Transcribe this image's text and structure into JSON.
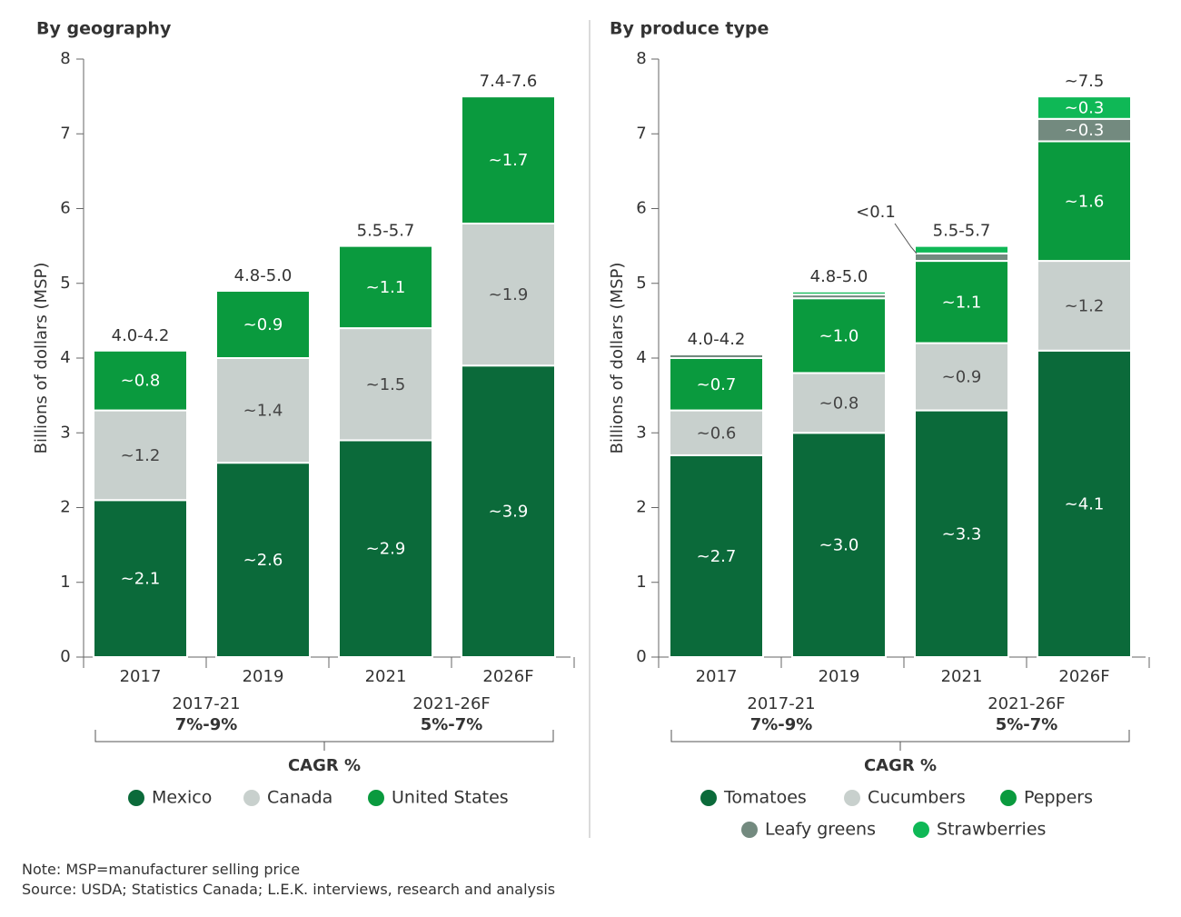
{
  "colors": {
    "dark_green": "#0b6a3a",
    "light_gray": "#c8d0cd",
    "mid_green": "#0a9a3e",
    "slate": "#738a7f",
    "bright_green": "#0fb856",
    "axis": "#666666",
    "divider": "#cfcfcf"
  },
  "footer": {
    "note": "Note: MSP=manufacturer selling price",
    "source": "Source: USDA; Statistics Canada; L.E.K. interviews, research and analysis"
  },
  "chart_data": [
    {
      "type": "bar",
      "stacked": true,
      "title": "By geography",
      "ylabel": "Billions of dollars (MSP)",
      "ylim": [
        0,
        8
      ],
      "yticks": [
        0,
        1,
        2,
        3,
        4,
        5,
        6,
        7,
        8
      ],
      "categories": [
        "2017",
        "2019",
        "2021",
        "2026F"
      ],
      "totals": [
        "4.0-4.2",
        "4.8-5.0",
        "5.5-5.7",
        "7.4-7.6"
      ],
      "series": [
        {
          "name": "Mexico",
          "color": "#0b6a3a",
          "values": [
            2.1,
            2.6,
            2.9,
            3.9
          ],
          "labels": [
            "~2.1",
            "~2.6",
            "~2.9",
            "~3.9"
          ]
        },
        {
          "name": "Canada",
          "color": "#c8d0cd",
          "values": [
            1.2,
            1.4,
            1.5,
            1.9
          ],
          "labels": [
            "~1.2",
            "~1.4",
            "~1.5",
            "~1.9"
          ]
        },
        {
          "name": "United States",
          "color": "#0a9a3e",
          "values": [
            0.8,
            0.9,
            1.1,
            1.7
          ],
          "labels": [
            "~0.8",
            "~0.9",
            "~1.1",
            "~1.7"
          ]
        }
      ],
      "cagr": {
        "title": "CAGR %",
        "periods": [
          {
            "period": "2017-21",
            "value": "7%-9%"
          },
          {
            "period": "2021-26F",
            "value": "5%-7%"
          }
        ]
      }
    },
    {
      "type": "bar",
      "stacked": true,
      "title": "By produce type",
      "ylabel": "Billions of dollars (MSP)",
      "ylim": [
        0,
        8
      ],
      "yticks": [
        0,
        1,
        2,
        3,
        4,
        5,
        6,
        7,
        8
      ],
      "categories": [
        "2017",
        "2019",
        "2021",
        "2026F"
      ],
      "totals": [
        "4.0-4.2",
        "4.8-5.0",
        "5.5-5.7",
        "~7.5"
      ],
      "series": [
        {
          "name": "Tomatoes",
          "color": "#0b6a3a",
          "values": [
            2.7,
            3.0,
            3.3,
            4.1
          ],
          "labels": [
            "~2.7",
            "~3.0",
            "~3.3",
            "~4.1"
          ]
        },
        {
          "name": "Cucumbers",
          "color": "#c8d0cd",
          "values": [
            0.6,
            0.8,
            0.9,
            1.2
          ],
          "labels": [
            "~0.6",
            "~0.8",
            "~0.9",
            "~1.2"
          ]
        },
        {
          "name": "Peppers",
          "color": "#0a9a3e",
          "values": [
            0.7,
            1.0,
            1.1,
            1.6
          ],
          "labels": [
            "~0.7",
            "~1.0",
            "~1.1",
            "~1.6"
          ]
        },
        {
          "name": "Leafy greens",
          "color": "#738a7f",
          "values": [
            0.05,
            0.05,
            0.1,
            0.3
          ],
          "labels": [
            "",
            "",
            "",
            "~0.3"
          ]
        },
        {
          "name": "Strawberries",
          "color": "#0fb856",
          "values": [
            0.0,
            0.04,
            0.1,
            0.3
          ],
          "labels": [
            "",
            "",
            "",
            "~0.3"
          ]
        }
      ],
      "annotations": [
        {
          "text": "<0.1",
          "category": "2021"
        }
      ],
      "cagr": {
        "title": "CAGR %",
        "periods": [
          {
            "period": "2017-21",
            "value": "7%-9%"
          },
          {
            "period": "2021-26F",
            "value": "5%-7%"
          }
        ]
      }
    }
  ]
}
